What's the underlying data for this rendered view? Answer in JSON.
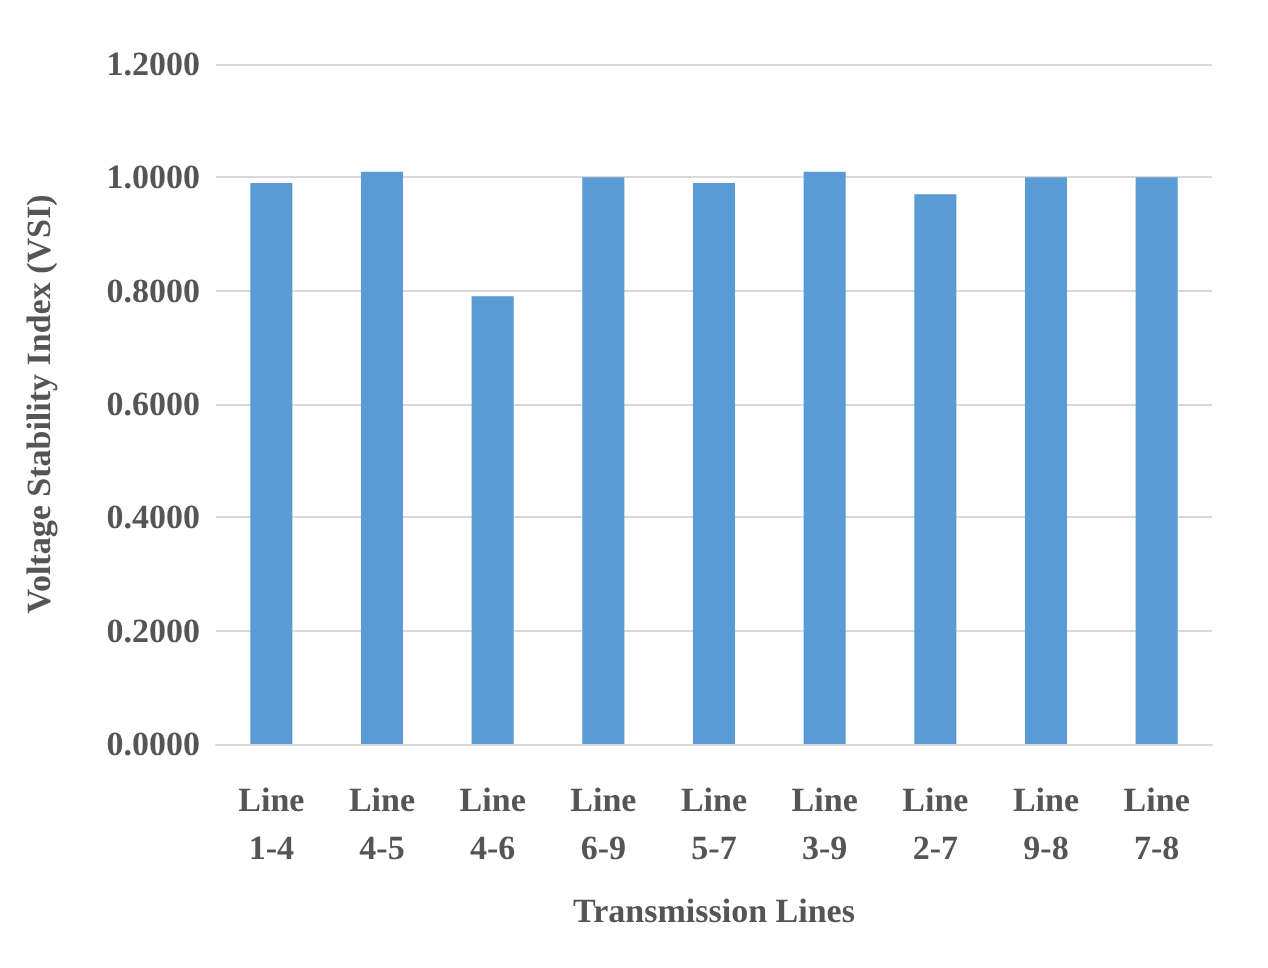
{
  "chart_data": {
    "type": "bar",
    "xlabel": "Transmission Lines",
    "ylabel": "Voltage Stability Index (VSI)",
    "categories": [
      "Line 1-4",
      "Line 4-5",
      "Line 4-6",
      "Line 6-9",
      "Line 5-7",
      "Line 3-9",
      "Line 2-7",
      "Line 9-8",
      "Line 7-8"
    ],
    "values": [
      0.99,
      1.01,
      0.79,
      1.0,
      0.99,
      1.01,
      0.97,
      1.0,
      1.0
    ],
    "color": "#5b9bd5",
    "ylim": [
      0,
      1.2
    ],
    "yticks": [
      {
        "value": 0,
        "label": "0.0000"
      },
      {
        "value": 0.2,
        "label": "0.2000"
      },
      {
        "value": 0.4,
        "label": "0.4000"
      },
      {
        "value": 0.6,
        "label": "0.6000"
      },
      {
        "value": 0.8,
        "label": "0.8000"
      },
      {
        "value": 1.0,
        "label": "1.0000"
      },
      {
        "value": 1.2,
        "label": "1.2000"
      }
    ],
    "grid": "y"
  }
}
